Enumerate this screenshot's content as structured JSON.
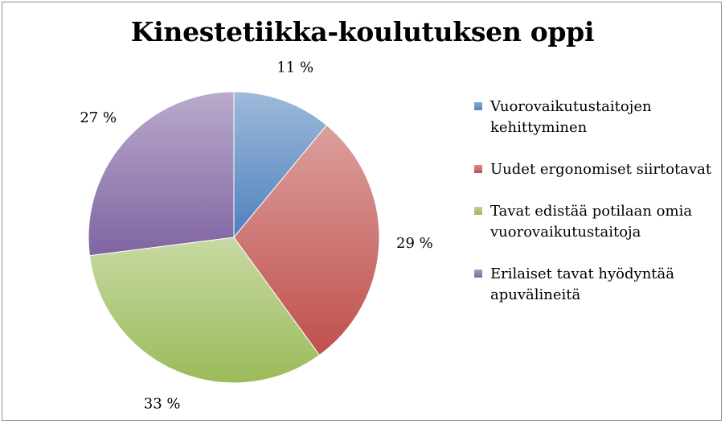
{
  "chart_data": {
    "type": "pie",
    "title": "Kinestetiikka-koulutuksen oppi",
    "categories": [
      "Vuorovaikutustaitojen kehittyminen",
      "Uudet ergonomiset siirtotavat",
      "Tavat edistää potilaan omia vuorovaikutustaitoja",
      "Erilaiset tavat hyödyntää apuvälineitä"
    ],
    "values": [
      11,
      29,
      33,
      27
    ],
    "data_labels": [
      "11 %",
      "29 %",
      "33 %",
      "27 %"
    ],
    "colors": [
      "#4f81bd",
      "#c0504d",
      "#9bbb59",
      "#8064a2"
    ],
    "legend_position": "right"
  }
}
